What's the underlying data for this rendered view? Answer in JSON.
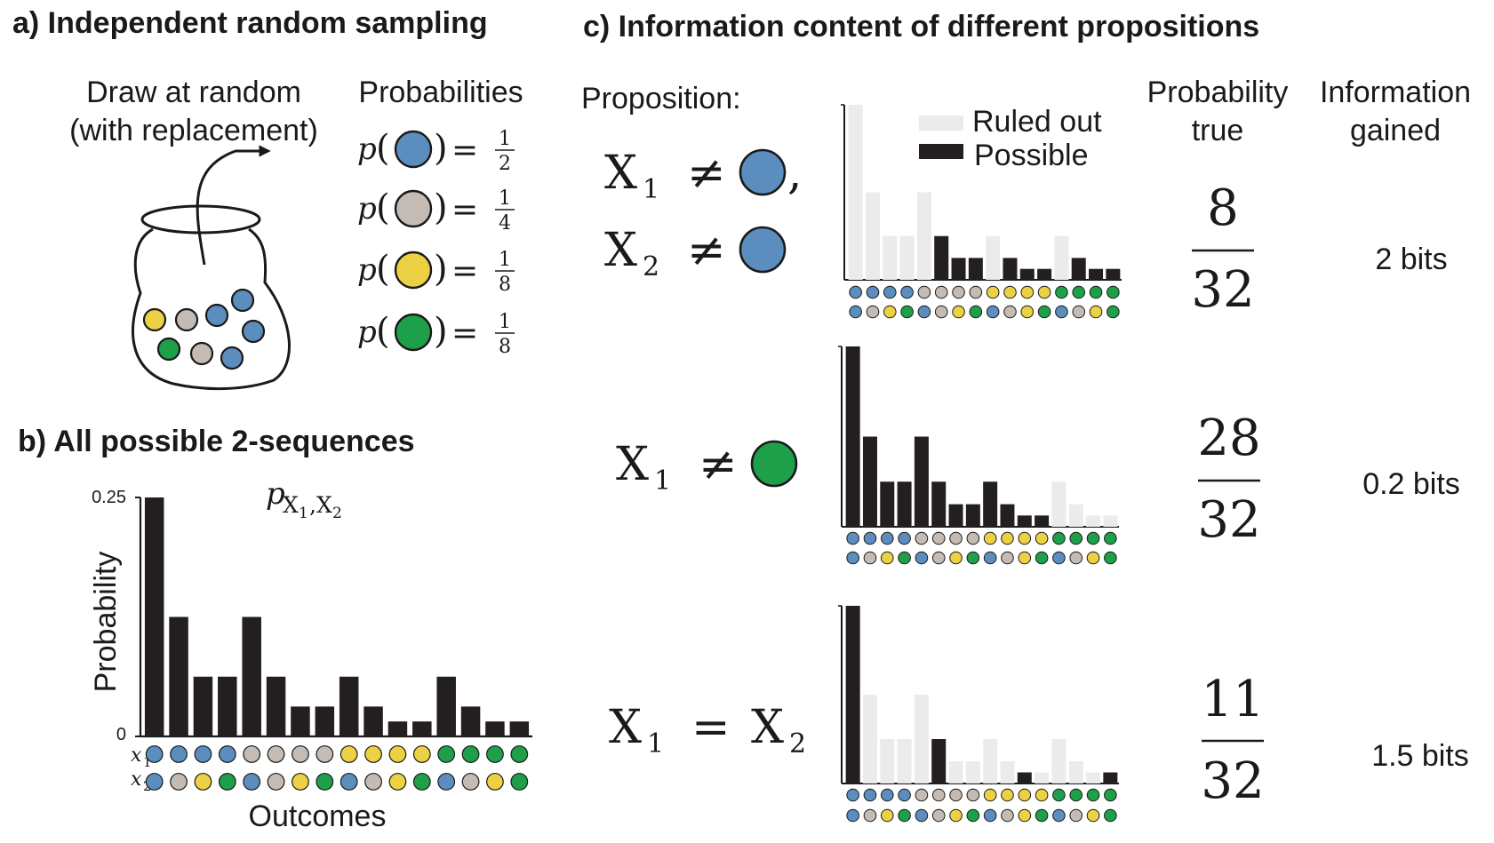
{
  "colors": {
    "blue": "#5b8dbf",
    "gray": "#c3bbb4",
    "yellow": "#ecd144",
    "green": "#1ea04a",
    "possible": "#231f20",
    "ruled_out": "#ebebeb",
    "ink": "#1a1a1a"
  },
  "panel_a": {
    "title": "a) Independent random sampling",
    "draw_line1": "Draw at random",
    "draw_line2": "(with replacement)",
    "prob_header": "Probabilities",
    "p_symbol": "p",
    "probabilities": [
      {
        "ball": "blue",
        "num": "1",
        "den": "2"
      },
      {
        "ball": "gray",
        "num": "1",
        "den": "4"
      },
      {
        "ball": "yellow",
        "num": "1",
        "den": "8"
      },
      {
        "ball": "green",
        "num": "1",
        "den": "8"
      }
    ],
    "jar_balls": [
      "yellow",
      "gray",
      "blue",
      "blue",
      "blue",
      "green",
      "gray",
      "blue"
    ]
  },
  "panel_b": {
    "title": "b) All possible 2-sequences",
    "pmf_label_main": "p",
    "pmf_label_sub": "X",
    "pmf_label_sub_idx1": "1",
    "pmf_label_sep": ",",
    "pmf_label_sub2": "X",
    "pmf_label_sub_idx2": "2",
    "ylabel": "Probability",
    "xlabel": "Outcomes",
    "ytick_top": "0.25",
    "ytick_bottom": "0",
    "x1_label": "x",
    "x1_idx": "1",
    "x2_label": "x",
    "x2_idx": "2"
  },
  "panel_c": {
    "title": "c) Information content of different propositions",
    "prop_header": "Proposition:",
    "prob_header_1": "Probability",
    "prob_header_2": "true",
    "info_header_1": "Information",
    "info_header_2": "gained",
    "legend_ruled_out": "Ruled out",
    "legend_possible": "Possible",
    "rows": [
      {
        "prop_lines": [
          {
            "var": "X",
            "idx": "1",
            "op": "≠",
            "ball": "blue",
            "suffix": ","
          },
          {
            "var": "X",
            "idx": "2",
            "op": "≠",
            "ball": "blue",
            "suffix": ""
          }
        ],
        "num": "8",
        "den": "32",
        "info": "2 bits",
        "mask": [
          0,
          0,
          0,
          0,
          0,
          1,
          1,
          1,
          0,
          1,
          1,
          1,
          0,
          1,
          1,
          1
        ]
      },
      {
        "prop_lines": [
          {
            "var": "X",
            "idx": "1",
            "op": "≠",
            "ball": "green",
            "suffix": ""
          }
        ],
        "num": "28",
        "den": "32",
        "info": "0.2 bits",
        "mask": [
          1,
          1,
          1,
          1,
          1,
          1,
          1,
          1,
          1,
          1,
          1,
          1,
          0,
          0,
          0,
          0
        ]
      },
      {
        "prop_lines": [
          {
            "var": "X",
            "idx": "1",
            "op": "=",
            "var2": "X",
            "idx2": "2"
          }
        ],
        "num": "11",
        "den": "32",
        "info": "1.5 bits",
        "mask": [
          1,
          0,
          0,
          0,
          0,
          1,
          0,
          0,
          0,
          0,
          1,
          0,
          0,
          0,
          0,
          1
        ]
      }
    ]
  },
  "chart_data": {
    "type": "bar",
    "ylabel": "Probability",
    "xlabel": "Outcomes",
    "ylim": [
      0,
      0.25
    ],
    "x1": [
      "blue",
      "blue",
      "blue",
      "blue",
      "gray",
      "gray",
      "gray",
      "gray",
      "yellow",
      "yellow",
      "yellow",
      "yellow",
      "green",
      "green",
      "green",
      "green"
    ],
    "x2": [
      "blue",
      "gray",
      "yellow",
      "green",
      "blue",
      "gray",
      "yellow",
      "green",
      "blue",
      "gray",
      "yellow",
      "green",
      "blue",
      "gray",
      "yellow",
      "green"
    ],
    "values": [
      0.25,
      0.125,
      0.0625,
      0.0625,
      0.125,
      0.0625,
      0.03125,
      0.03125,
      0.0625,
      0.03125,
      0.015625,
      0.015625,
      0.0625,
      0.03125,
      0.015625,
      0.015625
    ]
  }
}
